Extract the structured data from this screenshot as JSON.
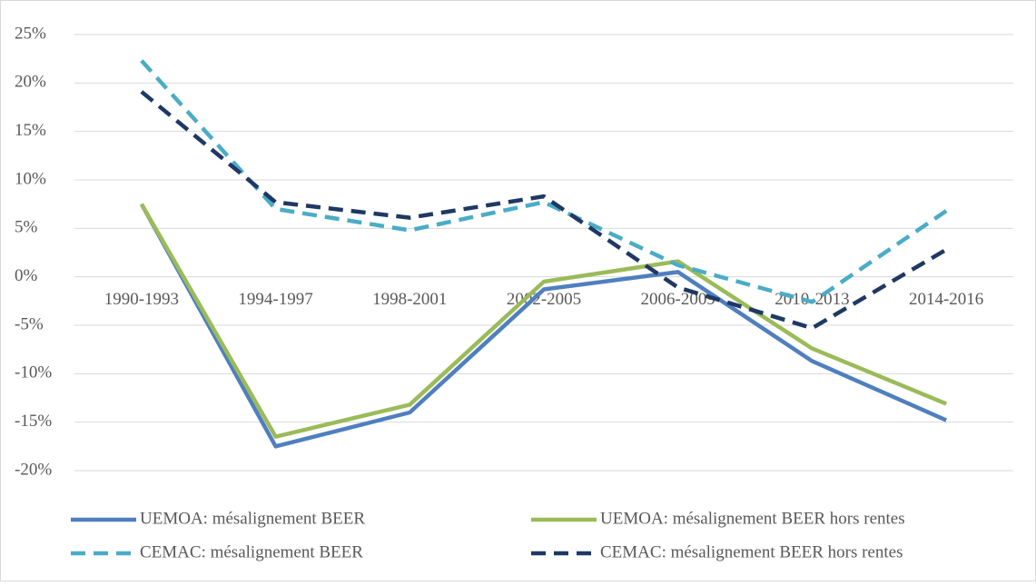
{
  "chart_data": {
    "type": "line",
    "categories": [
      "1990-1993",
      "1994-1997",
      "1998-2001",
      "2002-2005",
      "2006-2009",
      "2010-2013",
      "2014-2016"
    ],
    "series": [
      {
        "name": "UEMOA: mésalignement BEER",
        "color": "#4f7fbf",
        "line_style": "solid",
        "values": [
          7.5,
          -17.5,
          -14,
          -1.3,
          0.5,
          -8.7,
          -14.8
        ]
      },
      {
        "name": "UEMOA: mésalignement BEER hors rentes",
        "color": "#9bbb59",
        "line_style": "solid",
        "values": [
          7.5,
          -16.5,
          -13.2,
          -0.5,
          1.6,
          -7.4,
          -13.1
        ]
      },
      {
        "name": "CEMAC: mésalignement BEER",
        "color": "#4bacc6",
        "line_style": "dashed",
        "values": [
          22.3,
          7,
          4.8,
          7.7,
          1.2,
          -2.6,
          6.8
        ]
      },
      {
        "name": "CEMAC: mésalignement BEER hors rentes",
        "color": "#1f3864",
        "line_style": "dashed",
        "values": [
          19.1,
          7.7,
          6.1,
          8.3,
          -1.1,
          -5.3,
          2.8
        ]
      }
    ],
    "ylim": [
      -20,
      25
    ],
    "yticks": [
      {
        "value": -20,
        "label": "-20%"
      },
      {
        "value": -15,
        "label": "-15%"
      },
      {
        "value": -10,
        "label": "-10%"
      },
      {
        "value": -5,
        "label": "-5%"
      },
      {
        "value": 0,
        "label": "0%"
      },
      {
        "value": 5,
        "label": "5%"
      },
      {
        "value": 10,
        "label": "10%"
      },
      {
        "value": 15,
        "label": "15%"
      },
      {
        "value": 20,
        "label": "20%"
      },
      {
        "value": 25,
        "label": "25%"
      }
    ],
    "grid": true,
    "legend": "bottom"
  }
}
